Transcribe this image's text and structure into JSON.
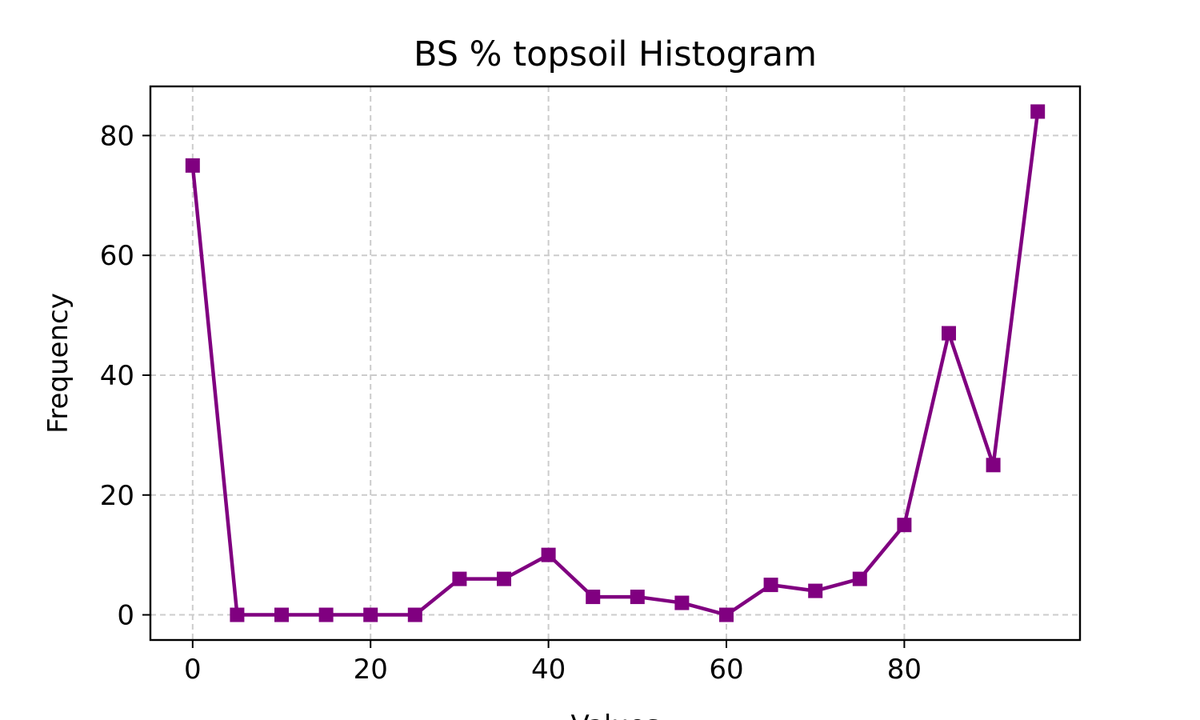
{
  "chart_data": {
    "type": "line",
    "title": "BS % topsoil Histogram",
    "xlabel": "Values",
    "ylabel": "Frequency",
    "xlim": [
      -4.75,
      99.75
    ],
    "ylim": [
      -4.2,
      88.2
    ],
    "xticks": [
      0,
      20,
      40,
      60,
      80
    ],
    "yticks": [
      0,
      20,
      40,
      60,
      80
    ],
    "grid": true,
    "marker": "square",
    "color": "#800080",
    "series": [
      {
        "x": [
          0,
          5,
          10,
          15,
          20,
          25,
          30,
          35,
          40,
          45,
          50,
          55,
          60,
          65,
          70,
          75,
          80,
          85,
          90,
          95
        ],
        "values": [
          75,
          0,
          0,
          0,
          0,
          0,
          6,
          6,
          10,
          3,
          3,
          2,
          0,
          5,
          4,
          6,
          15,
          47,
          25,
          84
        ]
      }
    ]
  }
}
